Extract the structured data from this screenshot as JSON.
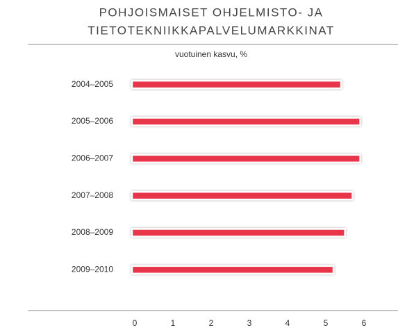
{
  "chart_data": {
    "type": "barh",
    "title": [
      "POHJOISMAISET OHJELMISTO- JA",
      "TIETOTEKNIIKKAPALVELUMARKKINAT"
    ],
    "subtitle": "vuotuinen kasvu, %",
    "categories": [
      "2004–2005",
      "2005–2006",
      "2006–2007",
      "2007–2008",
      "2008–2009",
      "2009–2010"
    ],
    "values": [
      5.4,
      5.9,
      5.9,
      5.7,
      5.5,
      5.2
    ],
    "color": "#e8344a",
    "xlim": [
      0,
      6
    ],
    "xticks": [
      0,
      1,
      2,
      3,
      4,
      5,
      6
    ],
    "grid": false
  }
}
